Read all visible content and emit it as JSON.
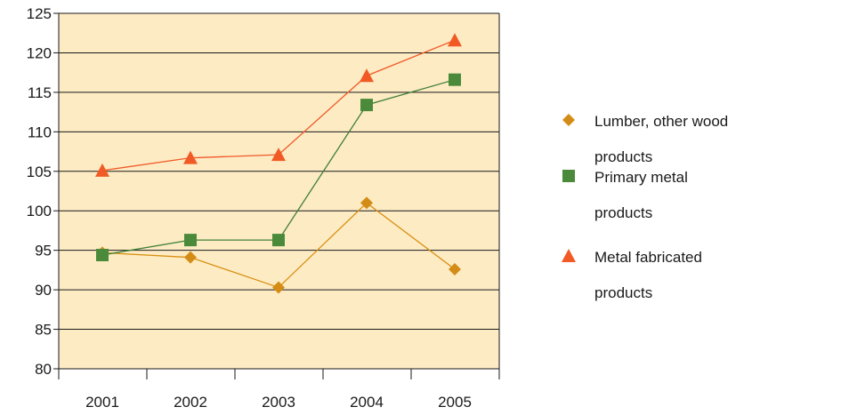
{
  "chart_data": {
    "type": "line",
    "title": "",
    "xlabel": "",
    "ylabel": "",
    "categories": [
      "2001",
      "2002",
      "2003",
      "2004",
      "2005"
    ],
    "ylim": [
      80,
      125
    ],
    "y_ticks": [
      80,
      85,
      90,
      95,
      100,
      105,
      110,
      115,
      120,
      125
    ],
    "grid": true,
    "legend_position": "right",
    "plot_background": "#fdebc4",
    "series": [
      {
        "name_lines": [
          "Lumber, other wood",
          "products"
        ],
        "marker": "diamond",
        "color": "#d8900f",
        "marker_color": "#d38d16",
        "values": [
          94.7,
          94.1,
          90.3,
          101.0,
          92.6
        ]
      },
      {
        "name_lines": [
          "Primary metal",
          "products"
        ],
        "marker": "square",
        "color": "#3f7f36",
        "marker_color": "#4b8a3a",
        "values": [
          94.4,
          96.3,
          96.3,
          113.4,
          116.6
        ]
      },
      {
        "name_lines": [
          "Metal fabricated",
          "products"
        ],
        "marker": "triangle",
        "color": "#f05a28",
        "marker_color": "#f15a24",
        "values": [
          105.1,
          106.7,
          107.1,
          117.1,
          121.6
        ]
      }
    ]
  }
}
